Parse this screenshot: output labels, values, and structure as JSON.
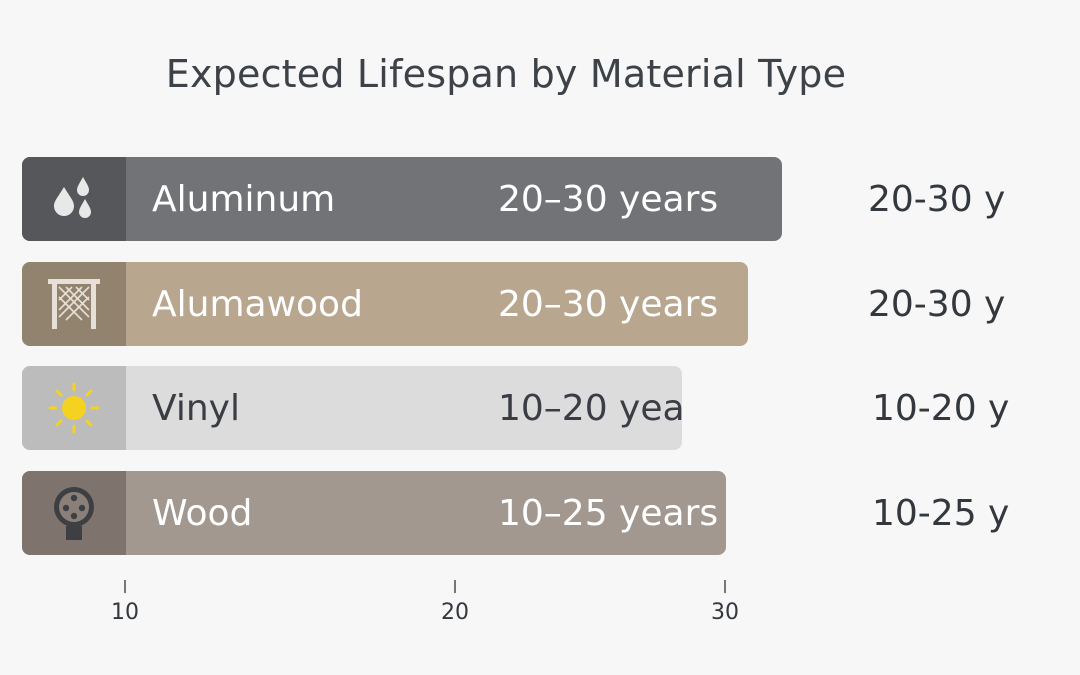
{
  "chart_data": {
    "type": "bar",
    "orientation": "horizontal",
    "title": "Expected Lifespan by Material Type",
    "categories": [
      "Aluminum",
      "Alumawood",
      "Vinyl",
      "Wood"
    ],
    "bar_range_labels": [
      "20–30 years",
      "20–30 years",
      "10–20 yea",
      "10–25 years"
    ],
    "side_labels": [
      "20-30 y",
      "20-30 y",
      "10-20 y",
      "10-25 y"
    ],
    "values_years": [
      [
        20,
        30
      ],
      [
        20,
        30
      ],
      [
        10,
        20
      ],
      [
        10,
        25
      ]
    ],
    "icons": [
      "water-drops-icon",
      "lattice-icon",
      "sun-icon",
      "wood-grain-icon"
    ],
    "colors": {
      "Aluminum": "#727376",
      "Alumawood": "#b8a68f",
      "Vinyl": "#dcdcdc",
      "Wood": "#a39890"
    },
    "x_ticks": [
      "10",
      "20",
      "30"
    ],
    "grid": false,
    "legend": "none"
  }
}
